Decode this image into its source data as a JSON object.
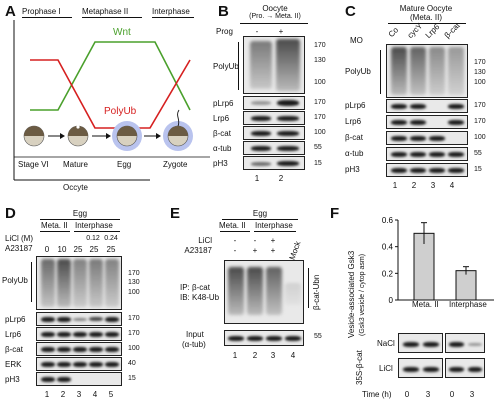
{
  "panelA": {
    "label": "A",
    "phases": [
      "Prophase I",
      "Metaphase II",
      "Interphase"
    ],
    "curves": {
      "wnt_label": "Wnt",
      "polyub_label": "PolyUb",
      "wnt_color": "#4aa02c",
      "polyub_color": "#d62020"
    },
    "stages": [
      "Stage VI",
      "Mature",
      "Egg",
      "Zygote"
    ],
    "bottom_label": "Occyte"
  },
  "panelB": {
    "label": "B",
    "header_title": "Oocyte",
    "header_sub": "(Pro. → Meta. II)",
    "prog_label": "Prog",
    "prog_values": [
      "-",
      "+"
    ],
    "rows": [
      "PolyUb",
      "pLrp6",
      "Lrp6",
      "β-cat",
      "α-tub",
      "pH3"
    ],
    "markers": [
      "170",
      "130",
      "100",
      "170",
      "170",
      "100",
      "55",
      "15"
    ],
    "lanes": [
      "1",
      "2"
    ]
  },
  "panelC": {
    "label": "C",
    "header_title": "Mature Oocyte",
    "header_sub": "(Meta. II)",
    "mo_label": "MO",
    "conditions": [
      "Co",
      "cycY",
      "Lrp6",
      "β-cat"
    ],
    "rows": [
      "PolyUb",
      "pLrp6",
      "Lrp6",
      "β-cat",
      "α-tub",
      "pH3"
    ],
    "markers": [
      "170",
      "130",
      "100",
      "170",
      "170",
      "100",
      "55",
      "15"
    ],
    "lanes": [
      "1",
      "2",
      "3",
      "4"
    ]
  },
  "panelD": {
    "label": "D",
    "header_title": "Egg",
    "groups": [
      "Meta. II",
      "Interphase"
    ],
    "licl_label": "LiCl (M)",
    "licl_values": [
      "",
      "",
      "",
      "0.12",
      "0.24"
    ],
    "a23187_label": "A23187",
    "a23187_values": [
      "0",
      "10",
      "25",
      "25",
      "25"
    ],
    "rows": [
      "PolyUb",
      "pLrp6",
      "Lrp6",
      "β-cat",
      "ERK",
      "pH3"
    ],
    "markers": [
      "170",
      "130",
      "100",
      "170",
      "170",
      "100",
      "40",
      "15"
    ],
    "lanes": [
      "1",
      "2",
      "3",
      "4",
      "5"
    ]
  },
  "panelE": {
    "label": "E",
    "header_title": "Egg",
    "groups": [
      "Meta. II",
      "Interphase"
    ],
    "licl_label": "LiCl",
    "licl_values": [
      "-",
      "-",
      "+"
    ],
    "a23187_label": "A23187",
    "a23187_values": [
      "-",
      "+",
      "+"
    ],
    "mock_label": "Mock",
    "ip_label_1": "IP: β-cat",
    "ip_label_2": "IB: K48-Ub",
    "right_label": "β-cat-Ubn",
    "input_label_1": "Input",
    "input_label_2": "(α-tub)",
    "marker_55": "55",
    "lanes": [
      "1",
      "2",
      "3",
      "4"
    ]
  },
  "panelF": {
    "label": "F",
    "ylabel_1": "Vesicle-associated Gsk3",
    "ylabel_2": "(Gsk3 vesicle / cytop asm)",
    "yticks": [
      "0.6",
      "0.4",
      "0.2",
      "0"
    ],
    "categories": [
      "Meta. II",
      "Interphase"
    ],
    "values": [
      0.5,
      0.22
    ],
    "errors": [
      0.08,
      0.03
    ],
    "ymax": 0.6,
    "blot_rows": [
      "NaCl",
      "LiCl"
    ],
    "blot_side_label": "35S-β-cat",
    "time_label": "Time (h)",
    "time_values": [
      "0",
      "3",
      "0",
      "3"
    ]
  }
}
